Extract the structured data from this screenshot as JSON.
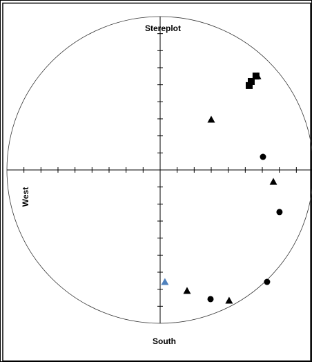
{
  "chart_data": {
    "type": "scatter",
    "title": "Stereplot",
    "x_label": "South",
    "y_label": "West",
    "xlim": [
      -9,
      9
    ],
    "ylim": [
      -9,
      9
    ],
    "xticks": [
      -8,
      -7,
      -6,
      -5,
      -4,
      -3,
      -2,
      -1,
      1,
      2,
      3,
      4,
      5,
      6,
      7,
      8
    ],
    "yticks": [
      -8,
      -7,
      -6,
      -5,
      -4,
      -3,
      -2,
      -1,
      1,
      2,
      3,
      4,
      5,
      6,
      7,
      8
    ],
    "series": [
      {
        "marker": "square",
        "color": "#000000",
        "x": [
          5.23,
          5.35,
          5.63
        ],
        "y": [
          4.95,
          5.19,
          5.51
        ]
      },
      {
        "marker": "triangle",
        "color": "#000000",
        "x": [
          5.72,
          3.0,
          6.65,
          4.05,
          1.58
        ],
        "y": [
          5.51,
          2.96,
          -0.69,
          -7.66,
          -7.09
        ]
      },
      {
        "marker": "circle",
        "color": "#000000",
        "x": [
          6.04,
          7.01,
          6.28,
          2.96
        ],
        "y": [
          0.77,
          -2.47,
          -6.57,
          -7.58
        ]
      },
      {
        "marker": "triangle",
        "color": "#4f81bd",
        "x": [
          0.28
        ],
        "y": [
          -6.57
        ]
      }
    ]
  }
}
